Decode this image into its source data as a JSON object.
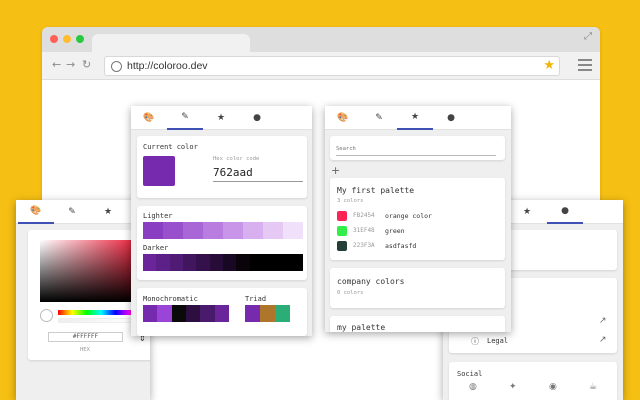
{
  "browser": {
    "url": "http://coloroo.dev",
    "traffic_lights": [
      "#ff5f57",
      "#ffbd2e",
      "#28c840"
    ]
  },
  "icons": {
    "palette": "palette-icon",
    "picker": "eyedropper-icon",
    "favorites": "star-icon",
    "account": "user-icon"
  },
  "picker_panel": {
    "hex_value": "#FFFFFF",
    "hex_label": "HEX"
  },
  "editor_panel": {
    "current_color_label": "Current color",
    "hex_code_label": "Hex color code",
    "hex_code_value": "762aad",
    "current_color": "#762aad",
    "lighter_label": "Lighter",
    "lighter_colors": [
      "#8a3fc2",
      "#9850cc",
      "#a866d6",
      "#b97ddf",
      "#c995e8",
      "#d8afef",
      "#e5c8f4",
      "#f1e0f9"
    ],
    "darker_label": "Darker",
    "darker_colors": [
      "#6a259b",
      "#5d2089",
      "#4f1b74",
      "#42165f",
      "#34114b",
      "#260c37",
      "#190823",
      "#0a0309",
      "#000000",
      "#000000",
      "#000000",
      "#000000"
    ],
    "monochromatic_label": "Monochromatic",
    "monochromatic_colors": [
      "#762aad",
      "#9b44d8",
      "#0a0a0a",
      "#2c0f40",
      "#4a1a6d",
      "#6a259b"
    ],
    "triad_label": "Triad",
    "triad_colors": [
      "#762aad",
      "#ad762a",
      "#2aad76"
    ]
  },
  "palettes_panel": {
    "search_placeholder": "Search",
    "add_symbol": "+",
    "palettes": [
      {
        "name": "My first palette",
        "count": "3 colors",
        "colors": [
          {
            "hex": "FB2454",
            "name": "orange color",
            "swatch": "#fb2454"
          },
          {
            "hex": "31EF48",
            "name": "green",
            "swatch": "#31ef48"
          },
          {
            "hex": "223F3A",
            "name": "asdfasfd",
            "swatch": "#223f3a"
          }
        ]
      },
      {
        "name": "company colors",
        "count": "0 colors"
      },
      {
        "name": "my palette"
      }
    ]
  },
  "settings_panel": {
    "legal_label": "Legal",
    "social_label": "Social",
    "social_icons": [
      "globe-icon",
      "twitter-icon",
      "github-icon",
      "coffee-icon"
    ]
  }
}
